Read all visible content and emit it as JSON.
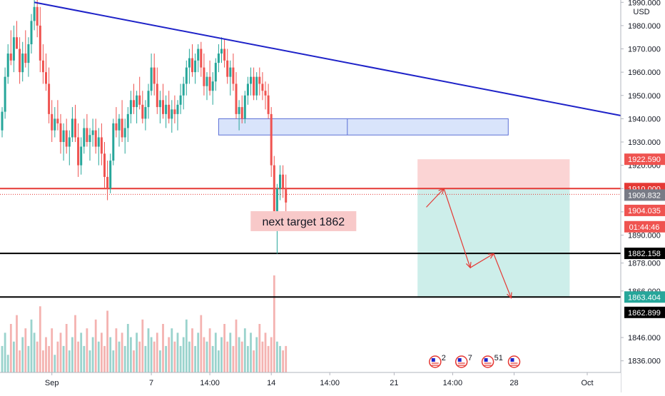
{
  "chart_data": {
    "type": "candlestick",
    "currency": "USD",
    "y_range": [
      1831,
      1991
    ],
    "y_ticks": [
      1836,
      1846,
      1866,
      1878,
      1890,
      1900,
      1910,
      1920,
      1930,
      1940,
      1950,
      1960,
      1970,
      1980,
      1990
    ],
    "y_tick_labels": [
      "1836.000",
      "1846.000",
      "1866.000",
      "1878.000",
      "1890.000",
      "1900.000",
      "1910.000",
      "1920.000",
      "1930.000",
      "1940.000",
      "1950.000",
      "1960.000",
      "1970.000",
      "1980.000",
      "1990.000"
    ],
    "x_tick_labels": [
      {
        "label": "Sep",
        "bar": 17
      },
      {
        "label": "7",
        "bar": 51
      },
      {
        "label": "14:00",
        "bar": 71
      },
      {
        "label": "14",
        "bar": 92
      },
      {
        "label": "14:00",
        "bar": 112
      },
      {
        "label": "21",
        "bar": 134
      },
      {
        "label": "14:00",
        "bar": 154
      },
      {
        "label": "28",
        "bar": 175
      },
      {
        "label": "Oct",
        "bar": 200
      }
    ],
    "candles": [
      [
        1935,
        1945,
        1932,
        1943
      ],
      [
        1943,
        1962,
        1940,
        1958
      ],
      [
        1958,
        1972,
        1955,
        1968
      ],
      [
        1968,
        1978,
        1963,
        1965
      ],
      [
        1965,
        1980,
        1960,
        1975
      ],
      [
        1975,
        1982,
        1970,
        1970
      ],
      [
        1970,
        1975,
        1955,
        1960
      ],
      [
        1960,
        1973,
        1956,
        1968
      ],
      [
        1968,
        1978,
        1962,
        1964
      ],
      [
        1964,
        1975,
        1958,
        1972
      ],
      [
        1972,
        1985,
        1968,
        1982
      ],
      [
        1982,
        1993,
        1978,
        1988
      ],
      [
        1988,
        1995,
        1975,
        1980
      ],
      [
        1980,
        1988,
        1960,
        1965
      ],
      [
        1965,
        1972,
        1955,
        1960
      ],
      [
        1960,
        1968,
        1952,
        1955
      ],
      [
        1955,
        1962,
        1938,
        1942
      ],
      [
        1942,
        1948,
        1930,
        1935
      ],
      [
        1935,
        1945,
        1932,
        1940
      ],
      [
        1940,
        1948,
        1935,
        1938
      ],
      [
        1938,
        1942,
        1925,
        1930
      ],
      [
        1930,
        1938,
        1922,
        1935
      ],
      [
        1935,
        1940,
        1925,
        1928
      ],
      [
        1928,
        1935,
        1920,
        1932
      ],
      [
        1932,
        1945,
        1930,
        1940
      ],
      [
        1940,
        1946,
        1930,
        1932
      ],
      [
        1932,
        1938,
        1915,
        1920
      ],
      [
        1920,
        1932,
        1916,
        1928
      ],
      [
        1928,
        1940,
        1925,
        1936
      ],
      [
        1936,
        1942,
        1928,
        1930
      ],
      [
        1930,
        1936,
        1922,
        1933
      ],
      [
        1933,
        1940,
        1928,
        1935
      ],
      [
        1935,
        1940,
        1925,
        1928
      ],
      [
        1928,
        1936,
        1920,
        1932
      ],
      [
        1932,
        1938,
        1920,
        1925
      ],
      [
        1925,
        1930,
        1910,
        1915
      ],
      [
        1915,
        1922,
        1905,
        1910
      ],
      [
        1910,
        1925,
        1908,
        1922
      ],
      [
        1922,
        1940,
        1920,
        1938
      ],
      [
        1938,
        1945,
        1932,
        1935
      ],
      [
        1935,
        1942,
        1928,
        1940
      ],
      [
        1940,
        1948,
        1930,
        1932
      ],
      [
        1932,
        1940,
        1925,
        1936
      ],
      [
        1936,
        1945,
        1930,
        1942
      ],
      [
        1942,
        1952,
        1938,
        1948
      ],
      [
        1948,
        1955,
        1942,
        1945
      ],
      [
        1945,
        1952,
        1938,
        1950
      ],
      [
        1950,
        1958,
        1944,
        1946
      ],
      [
        1946,
        1952,
        1938,
        1940
      ],
      [
        1940,
        1948,
        1935,
        1945
      ],
      [
        1945,
        1955,
        1940,
        1952
      ],
      [
        1952,
        1968,
        1950,
        1962
      ],
      [
        1962,
        1968,
        1950,
        1955
      ],
      [
        1955,
        1962,
        1942,
        1945
      ],
      [
        1945,
        1952,
        1938,
        1948
      ],
      [
        1948,
        1955,
        1940,
        1942
      ],
      [
        1942,
        1950,
        1936,
        1946
      ],
      [
        1946,
        1952,
        1938,
        1940
      ],
      [
        1940,
        1948,
        1934,
        1944
      ],
      [
        1944,
        1950,
        1938,
        1942
      ],
      [
        1942,
        1948,
        1935,
        1946
      ],
      [
        1946,
        1955,
        1942,
        1950
      ],
      [
        1950,
        1958,
        1944,
        1955
      ],
      [
        1955,
        1965,
        1950,
        1962
      ],
      [
        1962,
        1970,
        1955,
        1966
      ],
      [
        1966,
        1972,
        1958,
        1960
      ],
      [
        1960,
        1968,
        1955,
        1965
      ],
      [
        1965,
        1972,
        1960,
        1970
      ],
      [
        1970,
        1973,
        1958,
        1962
      ],
      [
        1962,
        1968,
        1950,
        1954
      ],
      [
        1954,
        1960,
        1948,
        1958
      ],
      [
        1958,
        1965,
        1950,
        1952
      ],
      [
        1952,
        1960,
        1946,
        1956
      ],
      [
        1956,
        1966,
        1952,
        1964
      ],
      [
        1964,
        1972,
        1960,
        1968
      ],
      [
        1968,
        1975,
        1964,
        1970
      ],
      [
        1970,
        1974,
        1962,
        1965
      ],
      [
        1965,
        1970,
        1955,
        1958
      ],
      [
        1958,
        1965,
        1950,
        1962
      ],
      [
        1962,
        1968,
        1952,
        1955
      ],
      [
        1955,
        1960,
        1940,
        1942
      ],
      [
        1942,
        1948,
        1935,
        1945
      ],
      [
        1945,
        1950,
        1938,
        1940
      ],
      [
        1940,
        1952,
        1938,
        1950
      ],
      [
        1950,
        1958,
        1946,
        1955
      ],
      [
        1955,
        1962,
        1950,
        1958
      ],
      [
        1958,
        1962,
        1948,
        1950
      ],
      [
        1950,
        1960,
        1948,
        1958
      ],
      [
        1958,
        1962,
        1950,
        1955
      ],
      [
        1955,
        1960,
        1948,
        1952
      ],
      [
        1952,
        1956,
        1944,
        1950
      ],
      [
        1950,
        1955,
        1940,
        1942
      ],
      [
        1942,
        1945,
        1915,
        1920
      ],
      [
        1920,
        1924,
        1895,
        1900
      ],
      [
        1900,
        1912,
        1882,
        1910
      ],
      [
        1910,
        1920,
        1905,
        1916
      ],
      [
        1916,
        1920,
        1906,
        1910
      ],
      [
        1910,
        1916,
        1895,
        1904
      ]
    ],
    "volume": [
      6,
      9,
      4,
      11,
      7,
      13,
      5,
      8,
      10,
      6,
      12,
      9,
      7,
      15,
      5,
      8,
      6,
      10,
      4,
      7,
      9,
      6,
      11,
      5,
      8,
      13,
      7,
      9,
      6,
      10,
      5,
      8,
      12,
      7,
      9,
      6,
      14,
      8,
      5,
      10,
      7,
      9,
      6,
      11,
      8,
      5,
      9,
      7,
      12,
      6,
      10,
      8,
      7,
      9,
      5,
      11,
      6,
      8,
      10,
      7,
      9,
      6,
      8,
      12,
      7,
      10,
      6,
      9,
      13,
      8,
      7,
      10,
      6,
      9,
      5,
      8,
      11,
      7,
      9,
      6,
      12,
      8,
      7,
      10,
      6,
      9,
      5,
      8,
      11,
      7,
      9,
      6,
      8,
      22,
      7,
      6,
      5,
      6
    ],
    "trendline": {
      "from": {
        "bar": 11,
        "price": 1990
      },
      "to": {
        "bar": 215,
        "price": 1940.5
      }
    },
    "support_zone": {
      "from_bar": 74,
      "to_bar": 173,
      "top": 1940,
      "bottom": 1933
    },
    "support_zone_mid_bar": 118,
    "horizontal_lines": [
      {
        "price": 1910.0,
        "color": "#e53935"
      },
      {
        "price": 1882.158,
        "color": "#000000"
      },
      {
        "price": 1863.404,
        "color": "#000000"
      }
    ],
    "dotted_line": {
      "price": 1907.5,
      "color": "#e53935"
    },
    "position": {
      "from_bar": 142,
      "to_bar": 194,
      "stop": 1922.59,
      "entry": 1910.0,
      "target": 1863.404
    },
    "projection_path": [
      {
        "bar": 145,
        "price": 1902
      },
      {
        "bar": 151,
        "price": 1910
      },
      {
        "bar": 160,
        "price": 1876
      },
      {
        "bar": 168,
        "price": 1882
      },
      {
        "bar": 174,
        "price": 1863
      }
    ],
    "annotation": {
      "text": "next target 1862",
      "bar": 103,
      "price": 1896
    },
    "badges": [
      {
        "text": "1922.590",
        "price": 1922.59,
        "color": "#ef5350"
      },
      {
        "text": "1910.000",
        "price": 1910.0,
        "color": "#e53935"
      },
      {
        "text": "1909.832",
        "price": 1907.2,
        "color": "#787b86"
      },
      {
        "text": "1904.035",
        "price": 1900.6,
        "color": "#ef5350"
      },
      {
        "text": "01:44:46",
        "price": 1893.6,
        "color": "#ef5350"
      },
      {
        "text": "1882.158",
        "price": 1882.158,
        "color": "#000000"
      },
      {
        "text": "1863.404",
        "price": 1863.404,
        "color": "#26a69a"
      },
      {
        "text": "1862.899",
        "price": 1856.8,
        "color": "#000000"
      }
    ],
    "events": [
      {
        "bar": 148,
        "label": "2"
      },
      {
        "bar": 157,
        "label": "7"
      },
      {
        "bar": 166,
        "label": "51"
      },
      {
        "bar": 175,
        "label": ""
      }
    ],
    "colors": {
      "up": "#26a69a",
      "down": "#ef5350",
      "up_volume": "#9ad3cd",
      "down_volume": "#f4b3b1",
      "trendline": "#1e22c8",
      "stop_zone": "#fbd4d4",
      "target_zone": "#cdeeea",
      "support_zone": "#d9e4fb",
      "projection": "#e53935"
    }
  }
}
